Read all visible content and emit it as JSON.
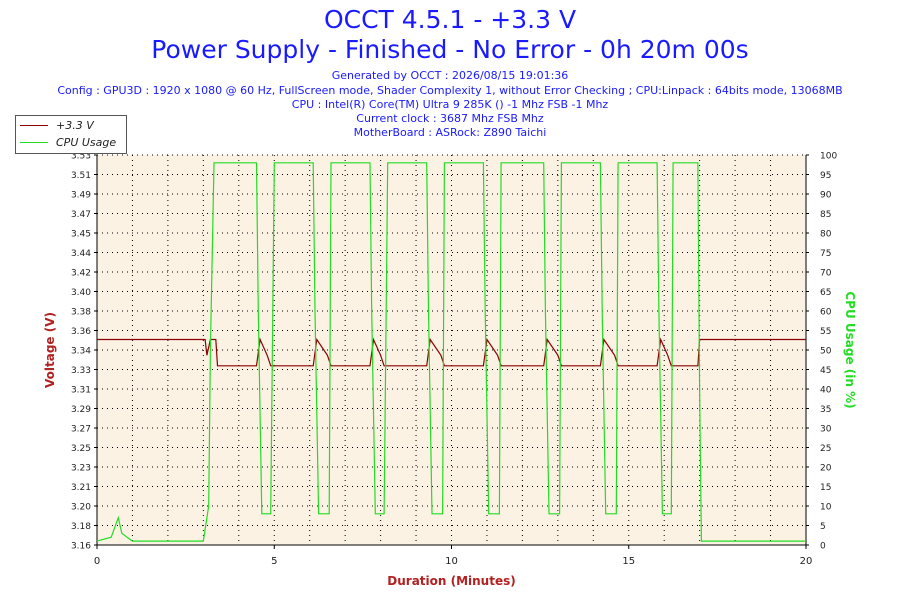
{
  "header": {
    "title1": "OCCT 4.5.1 - +3.3 V",
    "title2": "Power Supply - Finished - No Error - 0h 20m 00s",
    "generated": "Generated by OCCT : 2026/08/15 19:01:36",
    "config": "Config : GPU3D : 1920 x 1080 @ 60 Hz, FullScreen mode, Shader Complexity 1, without Error Checking ; CPU:Linpack : 64bits mode, 13068MB",
    "cpu": "CPU : Intel(R) Core(TM) Ultra 9 285K () -1 Mhz FSB -1 Mhz",
    "clock": "Current clock : 3687 Mhz FSB  Mhz",
    "motherboard": "MotherBoard : ASRock: Z890 Taichi"
  },
  "legend": {
    "voltage_label": "+3.3 V",
    "cpu_label": "CPU Usage"
  },
  "colors": {
    "voltage": "#8b0000",
    "cpu": "#22dd22",
    "plot_bg": "#fbf2e4",
    "title": "#1a1aff",
    "axis_label": "#b32020",
    "cpu_axis_label": "#22dd22"
  },
  "chart_data": {
    "type": "line",
    "xlabel": "Duration (Minutes)",
    "ylabel_left": "Voltage (V)",
    "ylabel_right": "CPU Usage (in %)",
    "xlim": [
      0,
      20
    ],
    "ylim_left": [
      3.16,
      3.53
    ],
    "ylim_right": [
      0,
      100
    ],
    "x_ticks": [
      0,
      5,
      10,
      15,
      20
    ],
    "y_left_ticks": [
      "3.16",
      "3.18",
      "3.20",
      "3.21",
      "3.23",
      "3.25",
      "3.27",
      "3.29",
      "3.31",
      "3.33",
      "3.34",
      "3.36",
      "3.38",
      "3.40",
      "3.42",
      "3.44",
      "3.45",
      "3.47",
      "3.49",
      "3.51",
      "3.53"
    ],
    "y_right_ticks": [
      0,
      5,
      10,
      15,
      20,
      25,
      30,
      35,
      40,
      45,
      50,
      55,
      60,
      65,
      70,
      75,
      80,
      85,
      90,
      95,
      100
    ],
    "grid": true,
    "series": [
      {
        "name": "+3.3 V",
        "x": [
          0,
          3.05,
          3.1,
          3.2,
          3.35,
          3.4,
          4.5,
          4.6,
          4.8,
          4.9,
          6.1,
          6.2,
          6.5,
          6.6,
          7.7,
          7.8,
          8.0,
          8.1,
          9.3,
          9.4,
          9.7,
          9.8,
          10.9,
          11.0,
          11.3,
          11.4,
          12.6,
          12.7,
          13.0,
          13.1,
          14.2,
          14.3,
          14.6,
          14.7,
          15.8,
          15.9,
          16.1,
          16.2,
          16.95,
          17.0,
          20
        ],
        "y": [
          3.355,
          3.355,
          3.34,
          3.355,
          3.355,
          3.33,
          3.33,
          3.355,
          3.34,
          3.33,
          3.33,
          3.355,
          3.34,
          3.33,
          3.33,
          3.355,
          3.34,
          3.33,
          3.33,
          3.355,
          3.34,
          3.33,
          3.33,
          3.355,
          3.34,
          3.33,
          3.33,
          3.355,
          3.34,
          3.33,
          3.33,
          3.355,
          3.34,
          3.33,
          3.33,
          3.355,
          3.34,
          3.33,
          3.33,
          3.355,
          3.355
        ]
      },
      {
        "name": "CPU Usage",
        "x": [
          0,
          0.4,
          0.6,
          0.7,
          1.0,
          3.0,
          3.15,
          3.2,
          3.3,
          4.5,
          4.55,
          4.65,
          4.9,
          5.0,
          6.1,
          6.15,
          6.25,
          6.55,
          6.6,
          7.7,
          7.75,
          7.85,
          8.1,
          8.2,
          9.3,
          9.35,
          9.45,
          9.75,
          9.8,
          10.9,
          10.95,
          11.05,
          11.35,
          11.4,
          12.6,
          12.65,
          12.75,
          13.05,
          13.1,
          14.2,
          14.25,
          14.35,
          14.65,
          14.7,
          15.8,
          15.85,
          15.95,
          16.2,
          16.25,
          16.95,
          17.0,
          17.05,
          20
        ],
        "y": [
          1,
          2,
          7,
          3,
          1,
          1,
          10,
          50,
          98,
          98,
          60,
          8,
          8,
          98,
          98,
          60,
          8,
          8,
          98,
          98,
          60,
          8,
          8,
          98,
          98,
          60,
          8,
          8,
          98,
          98,
          60,
          8,
          8,
          98,
          98,
          60,
          8,
          8,
          98,
          98,
          60,
          8,
          8,
          98,
          98,
          60,
          8,
          8,
          98,
          98,
          40,
          1,
          1
        ]
      }
    ]
  }
}
